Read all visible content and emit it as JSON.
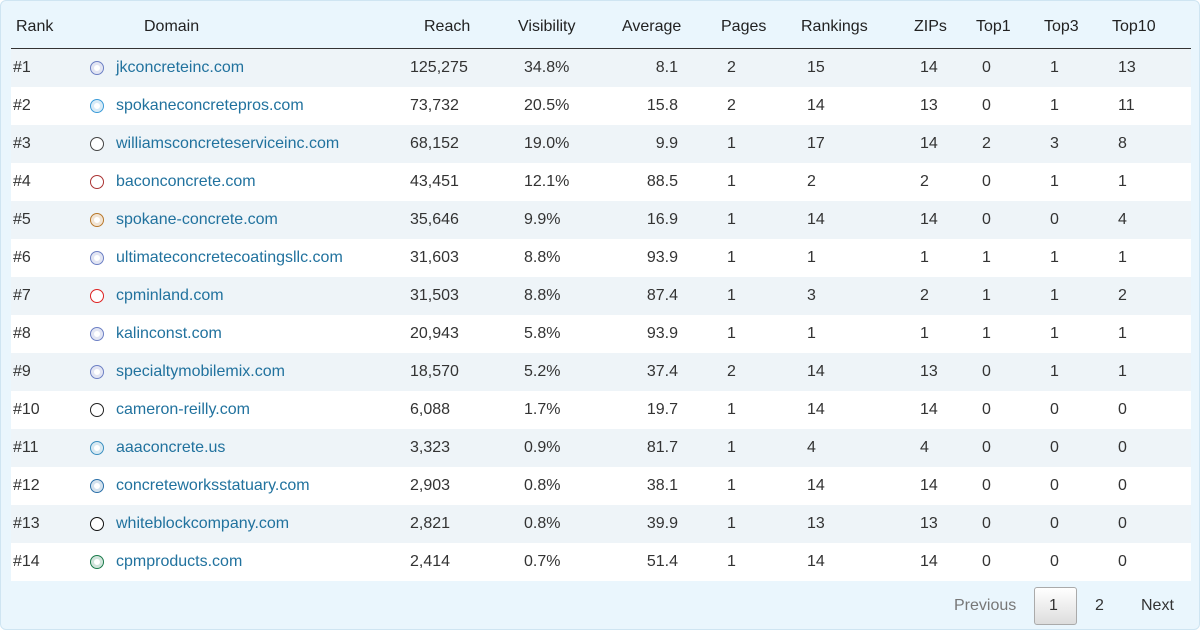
{
  "table": {
    "columns": [
      "Rank",
      "Domain",
      "Reach",
      "Visibility",
      "Average",
      "Pages",
      "Rankings",
      "ZIPs",
      "Top1",
      "Top3",
      "Top10"
    ],
    "rows": [
      [
        "#1",
        "jkconcreteinc.com",
        "125,275",
        "34.8%",
        "8.1",
        "2",
        "15",
        "14",
        "0",
        "1",
        "13"
      ],
      [
        "#2",
        "spokaneconcretepros.com",
        "73,732",
        "20.5%",
        "15.8",
        "2",
        "14",
        "13",
        "0",
        "1",
        "11"
      ],
      [
        "#3",
        "williamsconcreteserviceinc.com",
        "68,152",
        "19.0%",
        "9.9",
        "1",
        "17",
        "14",
        "2",
        "3",
        "8"
      ],
      [
        "#4",
        "baconconcrete.com",
        "43,451",
        "12.1%",
        "88.5",
        "1",
        "2",
        "2",
        "0",
        "1",
        "1"
      ],
      [
        "#5",
        "spokane-concrete.com",
        "35,646",
        "9.9%",
        "16.9",
        "1",
        "14",
        "14",
        "0",
        "0",
        "4"
      ],
      [
        "#6",
        "ultimateconcretecoatingsllc.com",
        "31,603",
        "8.8%",
        "93.9",
        "1",
        "1",
        "1",
        "1",
        "1",
        "1"
      ],
      [
        "#7",
        "cpminland.com",
        "31,503",
        "8.8%",
        "87.4",
        "1",
        "3",
        "2",
        "1",
        "1",
        "2"
      ],
      [
        "#8",
        "kalinconst.com",
        "20,943",
        "5.8%",
        "93.9",
        "1",
        "1",
        "1",
        "1",
        "1",
        "1"
      ],
      [
        "#9",
        "specialtymobilemix.com",
        "18,570",
        "5.2%",
        "37.4",
        "2",
        "14",
        "13",
        "0",
        "1",
        "1"
      ],
      [
        "#10",
        "cameron-reilly.com",
        "6,088",
        "1.7%",
        "19.7",
        "1",
        "14",
        "14",
        "0",
        "0",
        "0"
      ],
      [
        "#11",
        "aaaconcrete.us",
        "3,323",
        "0.9%",
        "81.7",
        "1",
        "4",
        "4",
        "0",
        "0",
        "0"
      ],
      [
        "#12",
        "concreteworksstatuary.com",
        "2,903",
        "0.8%",
        "38.1",
        "1",
        "14",
        "14",
        "0",
        "0",
        "0"
      ],
      [
        "#13",
        "whiteblockcompany.com",
        "2,821",
        "0.8%",
        "39.9",
        "1",
        "13",
        "13",
        "0",
        "0",
        "0"
      ],
      [
        "#14",
        "cpmproducts.com",
        "2,414",
        "0.7%",
        "51.4",
        "1",
        "14",
        "14",
        "0",
        "0",
        "0"
      ]
    ]
  },
  "pagination": {
    "previous": "Previous",
    "pages": [
      "1",
      "2"
    ],
    "next": "Next"
  }
}
